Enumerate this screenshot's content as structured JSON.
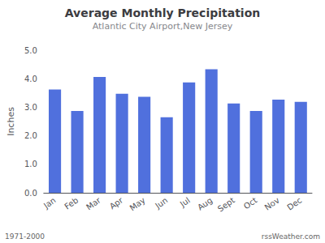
{
  "chart_data": {
    "type": "bar",
    "title": "Average Monthly Precipitation",
    "subtitle": "Atlantic City Airport,New Jersey",
    "y_label": "Inches",
    "categories": [
      "Jan",
      "Feb",
      "Mar",
      "Apr",
      "May",
      "Jun",
      "Jul",
      "Aug",
      "Sept",
      "Oct",
      "Nov",
      "Dec"
    ],
    "values": [
      3.62,
      2.87,
      4.06,
      3.47,
      3.37,
      2.65,
      3.87,
      4.33,
      3.13,
      2.87,
      3.27,
      3.19
    ],
    "ylim": [
      0.0,
      5.0
    ],
    "yticks": [
      {
        "value": 0.0,
        "label": "0.0"
      },
      {
        "value": 1.0,
        "label": "1.0"
      },
      {
        "value": 2.0,
        "label": "2.0"
      },
      {
        "value": 3.0,
        "label": "3.0"
      },
      {
        "value": 4.0,
        "label": "4.0"
      },
      {
        "value": 5.0,
        "label": "5.0"
      }
    ],
    "grid": false,
    "annotations": [
      "1971-2000",
      "rssWeather.com"
    ]
  }
}
